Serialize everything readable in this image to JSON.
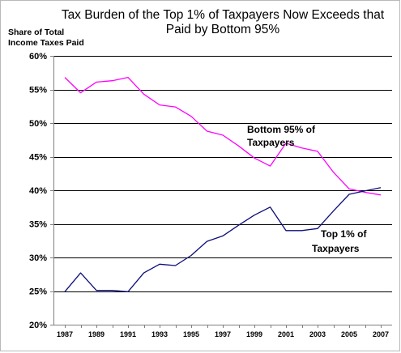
{
  "chart_data": {
    "type": "line",
    "title_lines": [
      "Tax Burden of the Top 1% of Taxpayers Now Exceeds that",
      "Paid by Bottom 95%"
    ],
    "ylabel_lines": [
      "Share of Total",
      "Income Taxes Paid"
    ],
    "xlabel": "",
    "ylim": [
      20,
      60
    ],
    "y_ticks": [
      "20%",
      "25%",
      "30%",
      "35%",
      "40%",
      "45%",
      "50%",
      "55%",
      "60%"
    ],
    "y_tick_values": [
      20,
      25,
      30,
      35,
      40,
      45,
      50,
      55,
      60
    ],
    "x_range": [
      1987,
      2007
    ],
    "x_ticks": [
      1987,
      1989,
      1991,
      1993,
      1995,
      1997,
      1999,
      2001,
      2003,
      2005,
      2007
    ],
    "grid": true,
    "x": [
      1987,
      1988,
      1989,
      1990,
      1991,
      1992,
      1993,
      1994,
      1995,
      1996,
      1997,
      1998,
      1999,
      2000,
      2001,
      2002,
      2003,
      2004,
      2005,
      2006,
      2007
    ],
    "series": [
      {
        "key": "bottom95",
        "color": "#ff00ff",
        "values": [
          56.8,
          54.5,
          56.1,
          56.3,
          56.8,
          54.3,
          52.7,
          52.4,
          51.0,
          48.8,
          48.2,
          46.6,
          44.8,
          43.6,
          47.0,
          46.3,
          45.8,
          42.7,
          40.2,
          39.7,
          39.3
        ]
      },
      {
        "key": "top1",
        "color": "#0d0d7a",
        "values": [
          24.9,
          27.7,
          25.1,
          25.1,
          24.9,
          27.7,
          29.0,
          28.8,
          30.3,
          32.4,
          33.2,
          34.8,
          36.3,
          37.5,
          34.0,
          34.0,
          34.3,
          36.9,
          39.4,
          39.9,
          40.4
        ]
      }
    ],
    "annotations": [
      {
        "series_key": "bottom95",
        "lines": [
          "Bottom 95% of",
          "Taxpayers"
        ]
      },
      {
        "series_key": "top1",
        "lines": [
          "Top 1% of",
          "Taxpayers"
        ]
      }
    ]
  }
}
